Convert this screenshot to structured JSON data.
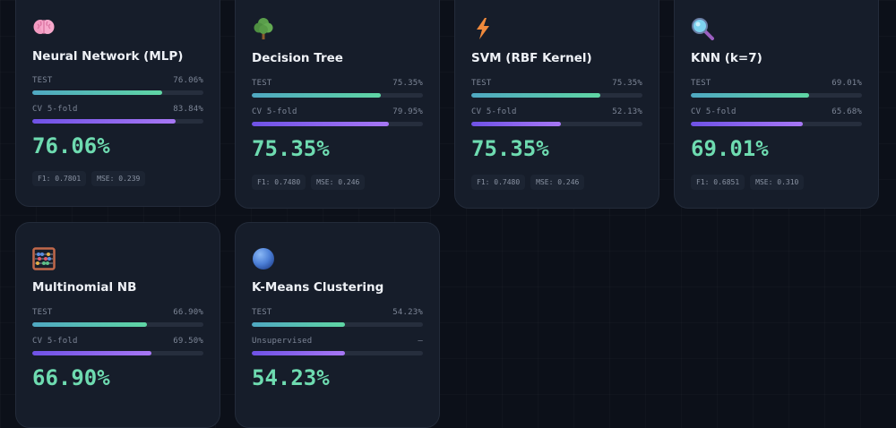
{
  "models": [
    {
      "title": "Neural Network (MLP)",
      "icon": "brain-icon",
      "test_label": "TEST",
      "test_value": "76.06%",
      "test_pct": 76.06,
      "cv_label": "CV 5-fold",
      "cv_value": "83.84%",
      "cv_pct": 83.84,
      "score": "76.06%",
      "f1": "F1: 0.7801",
      "mse": "MSE: 0.239"
    },
    {
      "title": "Decision Tree",
      "icon": "tree-icon",
      "test_label": "TEST",
      "test_value": "75.35%",
      "test_pct": 75.35,
      "cv_label": "CV 5-fold",
      "cv_value": "79.95%",
      "cv_pct": 79.95,
      "score": "75.35%",
      "f1": "F1: 0.7480",
      "mse": "MSE: 0.246"
    },
    {
      "title": "SVM (RBF Kernel)",
      "icon": "lightning-icon",
      "test_label": "TEST",
      "test_value": "75.35%",
      "test_pct": 75.35,
      "cv_label": "CV 5-fold",
      "cv_value": "52.13%",
      "cv_pct": 52.13,
      "score": "75.35%",
      "f1": "F1: 0.7480",
      "mse": "MSE: 0.246"
    },
    {
      "title": "KNN (k=7)",
      "icon": "magnifier-icon",
      "test_label": "TEST",
      "test_value": "69.01%",
      "test_pct": 69.01,
      "cv_label": "CV 5-fold",
      "cv_value": "65.68%",
      "cv_pct": 65.68,
      "score": "69.01%",
      "f1": "F1: 0.6851",
      "mse": "MSE: 0.310"
    },
    {
      "title": "Multinomial NB",
      "icon": "abacus-icon",
      "test_label": "TEST",
      "test_value": "66.90%",
      "test_pct": 66.9,
      "cv_label": "CV 5-fold",
      "cv_value": "69.50%",
      "cv_pct": 69.5,
      "score": "66.90%"
    },
    {
      "title": "K-Means Clustering",
      "icon": "sphere-icon",
      "test_label": "TEST",
      "test_value": "54.23%",
      "test_pct": 54.23,
      "cv_label": "Unsupervised",
      "cv_value": "—",
      "cv_pct": 54.23,
      "score": "54.23%"
    }
  ]
}
